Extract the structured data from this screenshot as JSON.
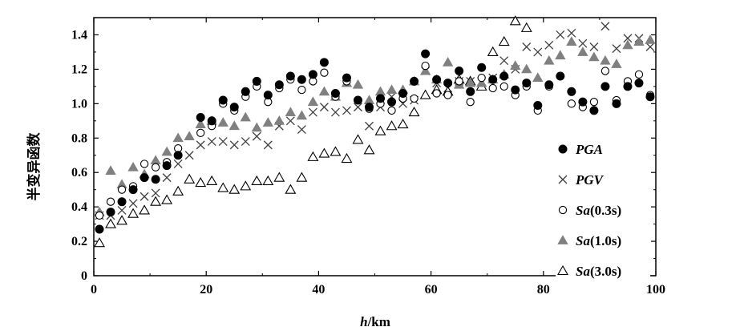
{
  "chart_data": {
    "type": "scatter",
    "xlabel": "h/km",
    "ylabel": "半变异函数",
    "xlim": [
      0,
      100
    ],
    "ylim": [
      0,
      1.5
    ],
    "xticks": [
      "0",
      "20",
      "40",
      "60",
      "80",
      "100"
    ],
    "yticks": [
      "0",
      "0.2",
      "0.4",
      "0.6",
      "0.8",
      "1.0",
      "1.2",
      "1.4"
    ],
    "grid": false,
    "legend_position": "right",
    "colors": {
      "black": "#000000",
      "gray": "#808080",
      "white": "#ffffff"
    },
    "series": [
      {
        "name": "PGA",
        "marker": "filled-circle",
        "color": "#000000",
        "x": [
          1,
          3,
          5,
          7,
          9,
          11,
          13,
          15,
          19,
          21,
          23,
          25,
          27,
          29,
          31,
          33,
          35,
          37,
          39,
          41,
          43,
          45,
          47,
          49,
          51,
          53,
          55,
          57,
          59,
          61,
          63,
          65,
          67,
          69,
          71,
          73,
          75,
          77,
          79,
          81,
          83,
          85,
          87,
          89,
          91,
          93,
          95,
          97,
          99
        ],
        "values": [
          0.27,
          0.37,
          0.43,
          0.5,
          0.57,
          0.56,
          0.64,
          0.7,
          0.92,
          0.9,
          1.02,
          0.98,
          1.07,
          1.13,
          1.05,
          1.11,
          1.16,
          1.14,
          1.17,
          1.24,
          1.06,
          1.15,
          1.02,
          0.98,
          1.03,
          1.01,
          1.06,
          1.13,
          1.29,
          1.14,
          1.12,
          1.19,
          1.07,
          1.21,
          1.14,
          1.16,
          1.08,
          1.12,
          0.99,
          1.11,
          1.16,
          1.07,
          1.01,
          0.96,
          1.1,
          1.0,
          1.1,
          1.12,
          1.04
        ]
      },
      {
        "name": "PGV",
        "marker": "cross",
        "color": "#404040",
        "x": [
          1,
          3,
          5,
          7,
          9,
          11,
          13,
          15,
          17,
          19,
          21,
          23,
          25,
          27,
          29,
          31,
          33,
          35,
          37,
          39,
          41,
          43,
          45,
          47,
          49,
          51,
          53,
          55,
          57,
          59,
          61,
          63,
          65,
          67,
          69,
          71,
          73,
          75,
          77,
          79,
          81,
          83,
          85,
          87,
          89,
          91,
          93,
          95,
          97,
          99
        ],
        "values": [
          0.35,
          0.35,
          0.38,
          0.42,
          0.46,
          0.48,
          0.57,
          0.65,
          0.7,
          0.76,
          0.78,
          0.78,
          0.76,
          0.78,
          0.81,
          0.76,
          0.87,
          0.9,
          0.85,
          0.95,
          0.98,
          0.95,
          0.96,
          0.98,
          0.87,
          0.98,
          1.04,
          1.0,
          1.02,
          1.19,
          1.12,
          1.09,
          1.13,
          1.13,
          1.13,
          1.15,
          1.25,
          1.2,
          1.33,
          1.3,
          1.34,
          1.4,
          1.41,
          1.35,
          1.33,
          1.45,
          1.32,
          1.38,
          1.38,
          1.33
        ]
      },
      {
        "name": "Sa(0.3s)",
        "marker": "open-circle",
        "color": "#000000",
        "x": [
          1,
          3,
          5,
          7,
          9,
          11,
          13,
          15,
          19,
          21,
          23,
          25,
          27,
          29,
          31,
          33,
          35,
          37,
          39,
          41,
          43,
          45,
          47,
          49,
          51,
          53,
          55,
          57,
          59,
          61,
          63,
          65,
          67,
          69,
          71,
          73,
          75,
          77,
          79,
          81,
          83,
          85,
          87,
          89,
          91,
          93,
          95,
          97,
          99
        ],
        "values": [
          0.35,
          0.43,
          0.5,
          0.52,
          0.65,
          0.63,
          0.66,
          0.74,
          0.83,
          0.87,
          1.0,
          0.96,
          1.04,
          1.1,
          1.01,
          1.09,
          1.14,
          1.08,
          1.13,
          1.18,
          1.04,
          1.13,
          1.02,
          0.97,
          1.0,
          0.96,
          1.03,
          1.03,
          1.22,
          1.06,
          1.05,
          1.13,
          1.01,
          1.15,
          1.09,
          1.1,
          1.05,
          1.1,
          0.96,
          1.1,
          1.16,
          1.0,
          0.98,
          1.01,
          1.19,
          1.02,
          1.13,
          1.17,
          1.05
        ]
      },
      {
        "name": "Sa(1.0s)",
        "marker": "filled-triangle",
        "color": "#808080",
        "x": [
          1,
          3,
          5,
          7,
          9,
          11,
          13,
          15,
          17,
          19,
          21,
          23,
          25,
          27,
          29,
          31,
          33,
          35,
          37,
          39,
          41,
          43,
          45,
          47,
          49,
          51,
          53,
          55,
          57,
          59,
          61,
          63,
          65,
          67,
          69,
          71,
          73,
          75,
          77,
          79,
          81,
          83,
          85,
          87,
          89,
          91,
          93,
          95,
          97,
          99
        ],
        "values": [
          0.37,
          0.61,
          0.53,
          0.63,
          0.59,
          0.67,
          0.72,
          0.8,
          0.81,
          0.88,
          0.9,
          0.89,
          0.87,
          0.92,
          0.86,
          0.89,
          0.9,
          0.95,
          0.93,
          1.01,
          1.07,
          1.04,
          1.12,
          1.11,
          1.02,
          1.07,
          1.08,
          1.08,
          1.13,
          1.19,
          1.14,
          1.24,
          1.11,
          1.12,
          1.12,
          1.14,
          1.17,
          1.22,
          1.2,
          1.15,
          1.25,
          1.28,
          1.36,
          1.3,
          1.27,
          1.25,
          1.23,
          1.34,
          1.36,
          1.37
        ]
      },
      {
        "name": "Sa(3.0s)",
        "marker": "open-triangle",
        "color": "#000000",
        "x": [
          1,
          3,
          5,
          7,
          9,
          11,
          13,
          15,
          17,
          19,
          21,
          23,
          25,
          27,
          29,
          31,
          33,
          35,
          37,
          39,
          41,
          43,
          45,
          47,
          49,
          51,
          53,
          55,
          57,
          59,
          61,
          63,
          65,
          67,
          69,
          71,
          73,
          75,
          77
        ],
        "values": [
          0.19,
          0.3,
          0.32,
          0.36,
          0.38,
          0.43,
          0.44,
          0.49,
          0.56,
          0.54,
          0.55,
          0.51,
          0.5,
          0.52,
          0.55,
          0.55,
          0.57,
          0.5,
          0.57,
          0.69,
          0.71,
          0.72,
          0.68,
          0.79,
          0.73,
          0.84,
          0.87,
          0.88,
          0.95,
          1.05,
          1.08,
          1.07,
          1.14,
          1.13,
          1.1,
          1.3,
          1.36,
          1.48,
          1.44
        ]
      }
    ]
  }
}
